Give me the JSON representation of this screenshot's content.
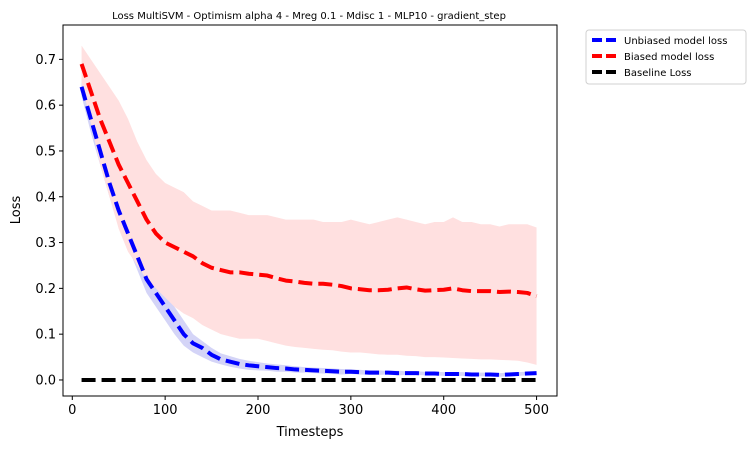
{
  "chart_data": {
    "type": "line",
    "title": "Loss MultiSVM - Optimism alpha 4 - Mreg 0.1 - Mdisc 1 - MLP10 - gradient_step",
    "xlabel": "Timesteps",
    "ylabel": "Loss",
    "xlim": [
      -10,
      522
    ],
    "ylim": [
      -0.035,
      0.775
    ],
    "xticks": [
      0,
      100,
      200,
      300,
      400,
      500
    ],
    "yticks": [
      0.0,
      0.1,
      0.2,
      0.3,
      0.4,
      0.5,
      0.6,
      0.7
    ],
    "xtick_labels": [
      "0",
      "100",
      "200",
      "300",
      "400",
      "500"
    ],
    "ytick_labels": [
      "0.0",
      "0.1",
      "0.2",
      "0.3",
      "0.4",
      "0.5",
      "0.6",
      "0.7"
    ],
    "grid": false,
    "legend_position": "outside-top-right",
    "x": [
      10,
      20,
      30,
      40,
      50,
      60,
      70,
      80,
      90,
      100,
      110,
      120,
      130,
      140,
      150,
      160,
      170,
      180,
      190,
      200,
      210,
      220,
      230,
      240,
      250,
      260,
      270,
      280,
      290,
      300,
      310,
      320,
      330,
      340,
      350,
      360,
      370,
      380,
      390,
      400,
      410,
      420,
      430,
      440,
      450,
      460,
      470,
      480,
      490,
      500
    ],
    "series": [
      {
        "name": "Unbiased model loss",
        "color": "#0000ff",
        "band_color": "#d4d4f7",
        "values": [
          0.64,
          0.57,
          0.5,
          0.43,
          0.37,
          0.32,
          0.27,
          0.22,
          0.19,
          0.16,
          0.13,
          0.1,
          0.08,
          0.07,
          0.055,
          0.045,
          0.04,
          0.035,
          0.032,
          0.03,
          0.028,
          0.026,
          0.025,
          0.023,
          0.022,
          0.021,
          0.02,
          0.019,
          0.018,
          0.018,
          0.017,
          0.016,
          0.016,
          0.016,
          0.015,
          0.015,
          0.015,
          0.014,
          0.014,
          0.013,
          0.013,
          0.013,
          0.012,
          0.012,
          0.012,
          0.011,
          0.012,
          0.013,
          0.014,
          0.015
        ],
        "upper": [
          0.66,
          0.6,
          0.53,
          0.46,
          0.4,
          0.35,
          0.3,
          0.25,
          0.22,
          0.19,
          0.16,
          0.13,
          0.1,
          0.085,
          0.07,
          0.058,
          0.052,
          0.046,
          0.042,
          0.039,
          0.036,
          0.034,
          0.032,
          0.03,
          0.028,
          0.027,
          0.026,
          0.025,
          0.024,
          0.023,
          0.022,
          0.021,
          0.021,
          0.02,
          0.02,
          0.019,
          0.019,
          0.018,
          0.018,
          0.017,
          0.017,
          0.017,
          0.016,
          0.016,
          0.016,
          0.015,
          0.016,
          0.017,
          0.018,
          0.019
        ],
        "lower": [
          0.62,
          0.54,
          0.47,
          0.4,
          0.34,
          0.29,
          0.24,
          0.19,
          0.16,
          0.13,
          0.1,
          0.075,
          0.06,
          0.05,
          0.04,
          0.034,
          0.029,
          0.025,
          0.022,
          0.021,
          0.02,
          0.018,
          0.018,
          0.016,
          0.016,
          0.015,
          0.014,
          0.013,
          0.012,
          0.013,
          0.012,
          0.011,
          0.011,
          0.012,
          0.01,
          0.011,
          0.011,
          0.01,
          0.01,
          0.009,
          0.009,
          0.009,
          0.008,
          0.008,
          0.008,
          0.007,
          0.008,
          0.009,
          0.01,
          0.011
        ]
      },
      {
        "name": "Biased model loss",
        "color": "#ff0000",
        "band_color": "#ffe0e0",
        "values": [
          0.69,
          0.63,
          0.57,
          0.52,
          0.47,
          0.43,
          0.39,
          0.35,
          0.32,
          0.3,
          0.29,
          0.28,
          0.27,
          0.255,
          0.245,
          0.24,
          0.235,
          0.235,
          0.232,
          0.23,
          0.228,
          0.222,
          0.217,
          0.215,
          0.212,
          0.21,
          0.21,
          0.208,
          0.205,
          0.2,
          0.198,
          0.196,
          0.196,
          0.197,
          0.2,
          0.202,
          0.198,
          0.195,
          0.196,
          0.197,
          0.2,
          0.196,
          0.194,
          0.194,
          0.194,
          0.192,
          0.193,
          0.192,
          0.19,
          0.183
        ],
        "upper": [
          0.73,
          0.7,
          0.67,
          0.64,
          0.61,
          0.57,
          0.52,
          0.48,
          0.45,
          0.43,
          0.42,
          0.41,
          0.39,
          0.38,
          0.37,
          0.37,
          0.37,
          0.365,
          0.36,
          0.36,
          0.36,
          0.355,
          0.35,
          0.35,
          0.35,
          0.35,
          0.345,
          0.345,
          0.345,
          0.35,
          0.345,
          0.34,
          0.345,
          0.35,
          0.355,
          0.35,
          0.345,
          0.34,
          0.345,
          0.345,
          0.355,
          0.345,
          0.345,
          0.34,
          0.34,
          0.335,
          0.34,
          0.34,
          0.34,
          0.333
        ],
        "lower": [
          0.65,
          0.56,
          0.47,
          0.4,
          0.33,
          0.28,
          0.25,
          0.22,
          0.2,
          0.18,
          0.16,
          0.145,
          0.135,
          0.12,
          0.11,
          0.1,
          0.095,
          0.09,
          0.09,
          0.09,
          0.085,
          0.08,
          0.075,
          0.072,
          0.07,
          0.068,
          0.066,
          0.065,
          0.062,
          0.06,
          0.06,
          0.058,
          0.056,
          0.055,
          0.055,
          0.053,
          0.052,
          0.05,
          0.05,
          0.049,
          0.048,
          0.047,
          0.046,
          0.045,
          0.045,
          0.044,
          0.043,
          0.042,
          0.038,
          0.033
        ]
      },
      {
        "name": "Baseline Loss",
        "color": "#000000",
        "values": [
          0,
          0,
          0,
          0,
          0,
          0,
          0,
          0,
          0,
          0,
          0,
          0,
          0,
          0,
          0,
          0,
          0,
          0,
          0,
          0,
          0,
          0,
          0,
          0,
          0,
          0,
          0,
          0,
          0,
          0,
          0,
          0,
          0,
          0,
          0,
          0,
          0,
          0,
          0,
          0,
          0,
          0,
          0,
          0,
          0,
          0,
          0,
          0,
          0,
          0
        ]
      }
    ]
  }
}
